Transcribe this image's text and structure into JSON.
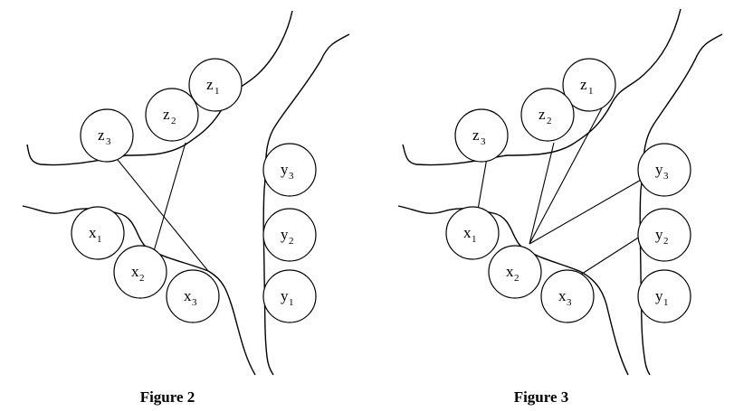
{
  "figures": [
    {
      "caption": "Figure 2",
      "nodes": [
        {
          "id": "z1",
          "base": "z",
          "sub": "1"
        },
        {
          "id": "z2",
          "base": "z",
          "sub": "2"
        },
        {
          "id": "z3",
          "base": "z",
          "sub": "3"
        },
        {
          "id": "x1",
          "base": "x",
          "sub": "1"
        },
        {
          "id": "x2",
          "base": "x",
          "sub": "2"
        },
        {
          "id": "x3",
          "base": "x",
          "sub": "3"
        },
        {
          "id": "y3",
          "base": "y",
          "sub": "3"
        },
        {
          "id": "y2",
          "base": "y",
          "sub": "2"
        },
        {
          "id": "y1",
          "base": "y",
          "sub": "1"
        }
      ],
      "edges": [
        [
          "z3",
          "x3"
        ],
        [
          "z2",
          "x2"
        ]
      ]
    },
    {
      "caption": "Figure 3",
      "nodes": [
        {
          "id": "z1",
          "base": "z",
          "sub": "1"
        },
        {
          "id": "z2",
          "base": "z",
          "sub": "2"
        },
        {
          "id": "z3",
          "base": "z",
          "sub": "3"
        },
        {
          "id": "x1",
          "base": "x",
          "sub": "1"
        },
        {
          "id": "x2",
          "base": "x",
          "sub": "2"
        },
        {
          "id": "x3",
          "base": "x",
          "sub": "3"
        },
        {
          "id": "y3",
          "base": "y",
          "sub": "3"
        },
        {
          "id": "y2",
          "base": "y",
          "sub": "2"
        },
        {
          "id": "y1",
          "base": "y",
          "sub": "1"
        }
      ],
      "edges": [
        [
          "z3",
          "x1"
        ],
        [
          "z2",
          "x2"
        ],
        [
          "z1",
          "x2"
        ],
        [
          "x2",
          "y3"
        ],
        [
          "x3",
          "y2"
        ]
      ]
    }
  ]
}
